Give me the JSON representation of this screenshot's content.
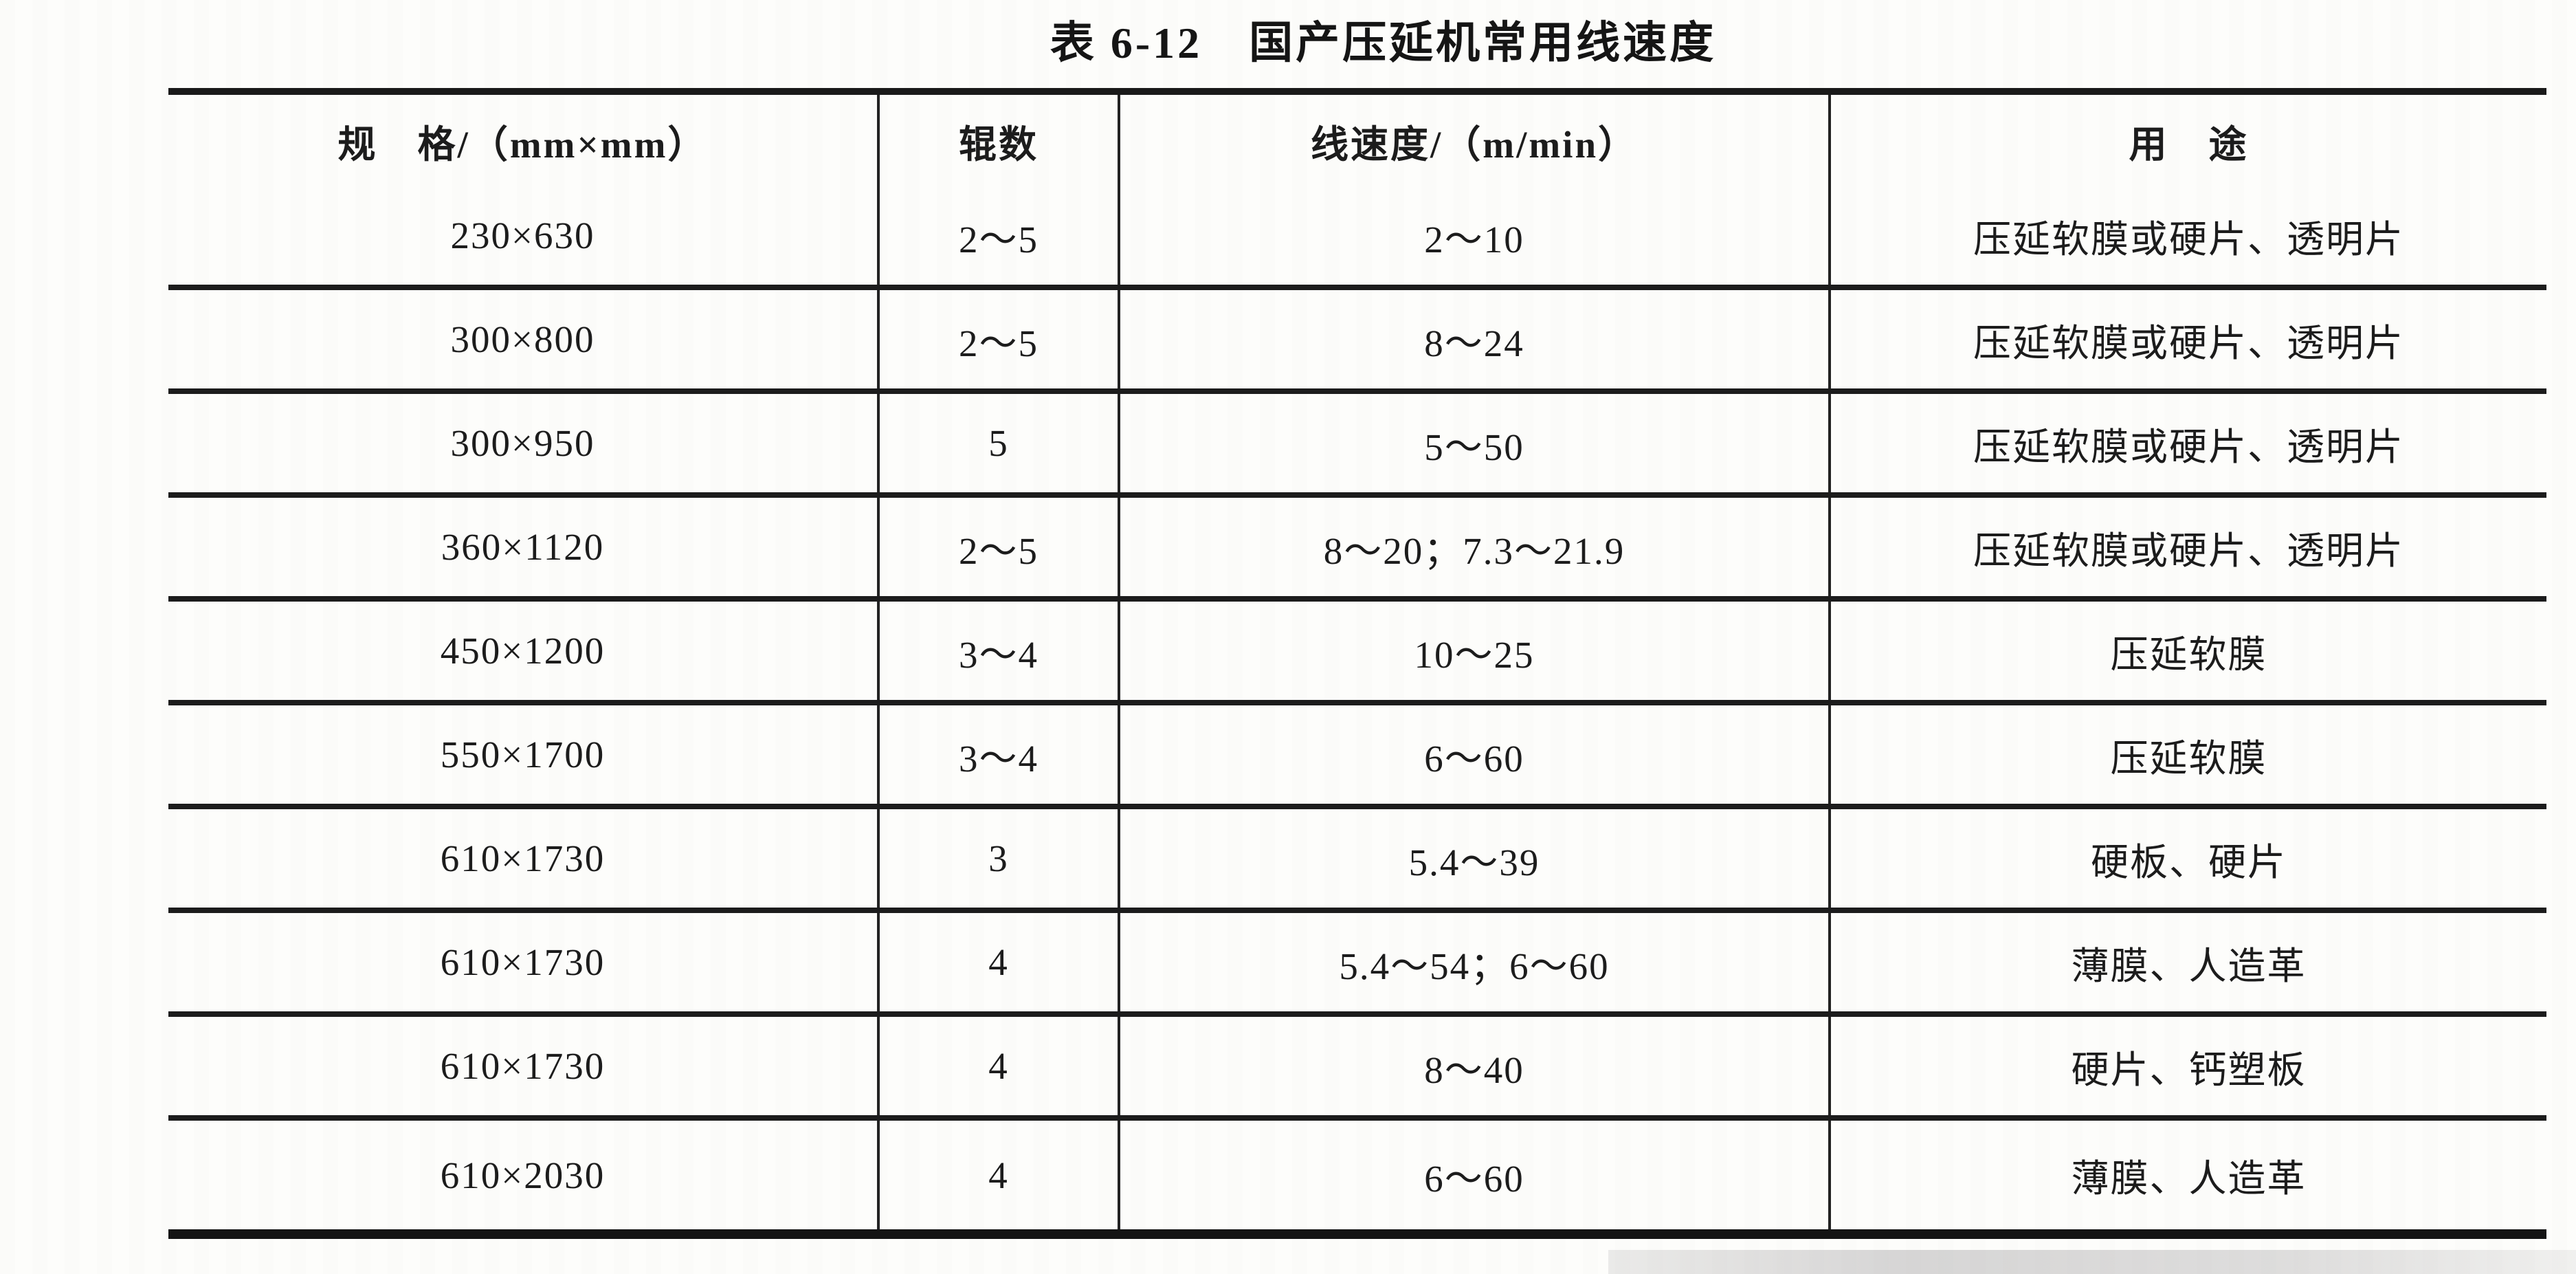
{
  "title": "表 6-12　国产压延机常用线速度",
  "table": {
    "headers": {
      "spec": "规　格/（mm×mm）",
      "rolls": "辊数",
      "speed": "线速度/（m/min）",
      "use": "用　途"
    },
    "rows": [
      [
        "230×630",
        "2～5",
        "2～10",
        "压延软膜或硬片、透明片"
      ],
      [
        "300×800",
        "2～5",
        "8～24",
        "压延软膜或硬片、透明片"
      ],
      [
        "300×950",
        "5",
        "5～50",
        "压延软膜或硬片、透明片"
      ],
      [
        "360×1120",
        "2～5",
        "8～20；7.3～21.9",
        "压延软膜或硬片、透明片"
      ],
      [
        "450×1200",
        "3～4",
        "10～25",
        "压延软膜"
      ],
      [
        "550×1700",
        "3～4",
        "6～60",
        "压延软膜"
      ],
      [
        "610×1730",
        "3",
        "5.4～39",
        "硬板、硬片"
      ],
      [
        "610×1730",
        "4",
        "5.4～54；6～60",
        "薄膜、人造革"
      ],
      [
        "610×1730",
        "4",
        "8～40",
        "硬片、钙塑板"
      ],
      [
        "610×2030",
        "4",
        "6～60",
        "薄膜、人造革"
      ]
    ]
  },
  "colors": {
    "ink": "#1b1b1b",
    "paper": "#fdfdfb",
    "rule": "#1c1c1c"
  }
}
